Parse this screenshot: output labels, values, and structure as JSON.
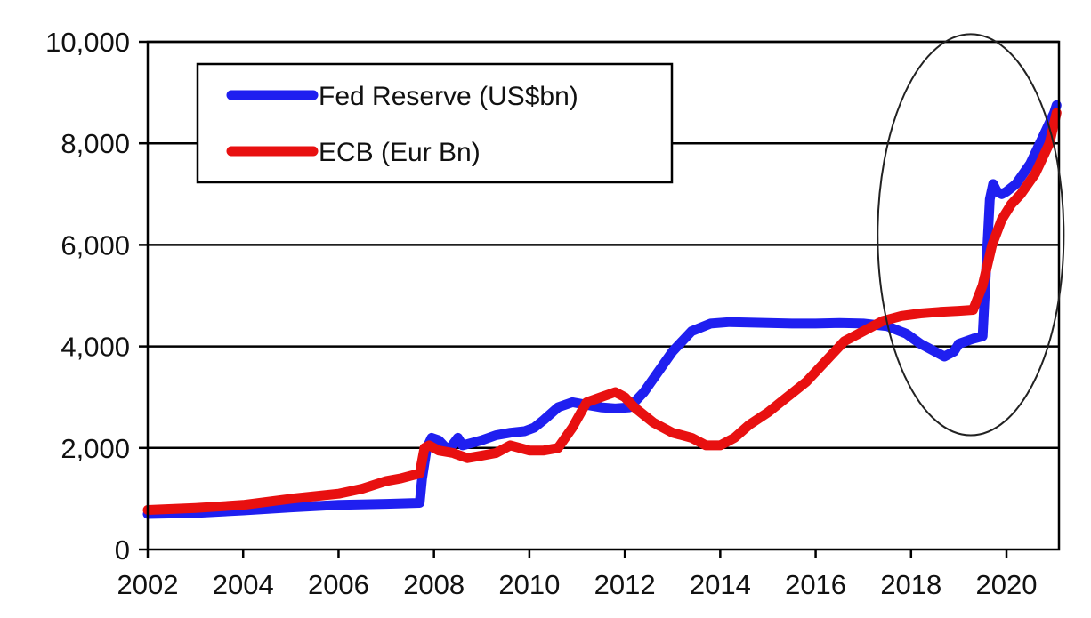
{
  "chart_data": {
    "type": "line",
    "title": "",
    "xlabel": "",
    "ylabel": "",
    "xlim": [
      2002,
      2021.1
    ],
    "ylim": [
      0,
      10000
    ],
    "x_ticks": [
      2002,
      2004,
      2006,
      2008,
      2010,
      2012,
      2014,
      2016,
      2018,
      2020
    ],
    "x_tick_labels": [
      "2002",
      "2004",
      "2006",
      "2008",
      "2010",
      "2012",
      "2014",
      "2016",
      "2018",
      "2020"
    ],
    "y_ticks": [
      0,
      2000,
      4000,
      6000,
      8000,
      10000
    ],
    "y_tick_labels": [
      "0",
      "2,000",
      "4,000",
      "6,000",
      "8,000",
      "10,000"
    ],
    "grid": "horizontal",
    "legend_position": "top-left",
    "legend": [
      "Fed Reserve (US$bn)",
      "ECB (Eur Bn)"
    ],
    "annotations": [
      {
        "type": "ellipse",
        "description": "circled 2018–2021 surge",
        "x_range": [
          2017.3,
          2021.2
        ],
        "y_range": [
          2250,
          10150
        ]
      }
    ],
    "series": [
      {
        "name": "Fed Reserve (US$bn)",
        "color": "#1f1ff0",
        "x": [
          2002.0,
          2003.0,
          2004.0,
          2005.0,
          2006.0,
          2007.0,
          2007.7,
          2007.75,
          2007.85,
          2007.95,
          2008.1,
          2008.2,
          2008.3,
          2008.5,
          2008.6,
          2008.8,
          2009.0,
          2009.3,
          2009.6,
          2009.9,
          2010.1,
          2010.3,
          2010.6,
          2010.9,
          2011.2,
          2011.5,
          2011.8,
          2012.1,
          2012.4,
          2012.7,
          2013.0,
          2013.4,
          2013.8,
          2014.2,
          2014.6,
          2015.0,
          2015.5,
          2016.0,
          2016.5,
          2017.0,
          2017.5,
          2017.9,
          2018.2,
          2018.5,
          2018.7,
          2018.9,
          2019.0,
          2019.3,
          2019.5,
          2019.65,
          2019.72,
          2019.8,
          2019.9,
          2020.0,
          2020.2,
          2020.5,
          2020.8,
          2021.0,
          2021.05
        ],
        "values": [
          700,
          720,
          770,
          830,
          880,
          900,
          920,
          1400,
          2000,
          2200,
          2150,
          2050,
          1950,
          2200,
          2050,
          2100,
          2150,
          2250,
          2300,
          2330,
          2400,
          2550,
          2800,
          2900,
          2850,
          2800,
          2780,
          2800,
          3100,
          3500,
          3900,
          4300,
          4450,
          4480,
          4470,
          4460,
          4450,
          4450,
          4460,
          4450,
          4400,
          4250,
          4050,
          3900,
          3800,
          3900,
          4050,
          4150,
          4200,
          6900,
          7200,
          7050,
          7000,
          7050,
          7200,
          7600,
          8200,
          8600,
          8750
        ]
      },
      {
        "name": "ECB (Eur Bn)",
        "color": "#e81010",
        "x": [
          2002.0,
          2003.0,
          2004.0,
          2005.0,
          2006.0,
          2006.5,
          2007.0,
          2007.3,
          2007.5,
          2007.7,
          2007.8,
          2007.9,
          2008.1,
          2008.4,
          2008.7,
          2009.0,
          2009.3,
          2009.6,
          2009.8,
          2010.0,
          2010.3,
          2010.6,
          2010.9,
          2011.2,
          2011.5,
          2011.8,
          2012.0,
          2012.2,
          2012.6,
          2013.0,
          2013.4,
          2013.7,
          2014.0,
          2014.3,
          2014.6,
          2015.0,
          2015.4,
          2015.8,
          2016.2,
          2016.6,
          2017.0,
          2017.4,
          2017.8,
          2018.2,
          2018.6,
          2019.0,
          2019.3,
          2019.5,
          2019.7,
          2019.9,
          2020.1,
          2020.3,
          2020.6,
          2020.9,
          2021.05
        ],
        "values": [
          780,
          820,
          880,
          1000,
          1100,
          1200,
          1350,
          1400,
          1450,
          1500,
          2000,
          2050,
          1950,
          1900,
          1800,
          1850,
          1900,
          2050,
          2000,
          1950,
          1950,
          2000,
          2400,
          2900,
          3000,
          3100,
          3000,
          2800,
          2500,
          2300,
          2200,
          2050,
          2050,
          2200,
          2450,
          2700,
          3000,
          3300,
          3700,
          4100,
          4300,
          4500,
          4600,
          4650,
          4680,
          4700,
          4720,
          5200,
          6000,
          6500,
          6800,
          7000,
          7400,
          8000,
          8600
        ]
      }
    ]
  }
}
